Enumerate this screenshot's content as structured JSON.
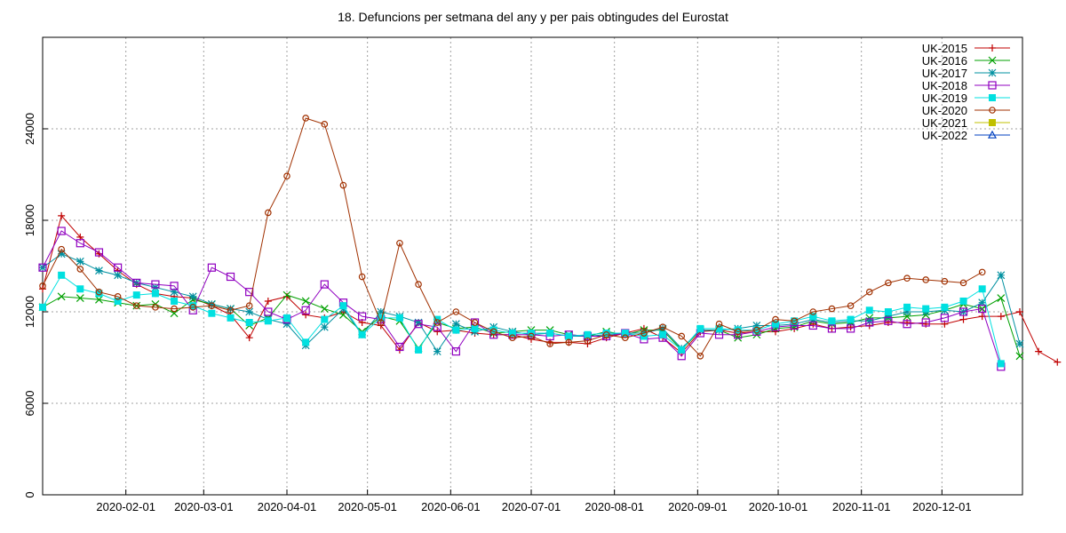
{
  "chart_data": {
    "type": "line",
    "title": "18. Defuncions per setmana del any y per pais obtingudes del Eurostat",
    "xlabel": "",
    "ylabel": "",
    "x_axis": {
      "type": "date",
      "min": "2020-01-01",
      "max": "2020-12-31",
      "ticks": [
        "2020-02-01",
        "2020-03-01",
        "2020-04-01",
        "2020-05-01",
        "2020-06-01",
        "2020-07-01",
        "2020-08-01",
        "2020-09-01",
        "2020-10-01",
        "2020-11-01",
        "2020-12-01"
      ]
    },
    "y_axis": {
      "min": 0,
      "max": 30000,
      "ticks": [
        0,
        6000,
        12000,
        18000,
        24000
      ]
    },
    "grid": true,
    "legend_position": "top-right",
    "x_start": "2020-01-01",
    "x_step_days": 7,
    "series": [
      {
        "name": "UK-2015",
        "color": "#c00000",
        "marker": "plus",
        "values": [
          13500,
          18300,
          16900,
          15800,
          14700,
          13800,
          13200,
          13000,
          12900,
          12400,
          11800,
          10300,
          12700,
          13000,
          11800,
          11600,
          12000,
          11300,
          11100,
          9500,
          11300,
          10700,
          10800,
          10600,
          10500,
          10500,
          10200,
          10000,
          10000,
          9900,
          10300,
          10600,
          10900,
          10300,
          9300,
          10700,
          10800,
          10600,
          10700,
          10700,
          10900,
          11200,
          10900,
          11000,
          11100,
          11300,
          11300,
          11200,
          11200,
          11500,
          11700,
          11700,
          12000,
          9400,
          8700
        ]
      },
      {
        "name": "UK-2016",
        "color": "#00a000",
        "marker": "cross",
        "values": [
          12300,
          13000,
          12900,
          12800,
          12600,
          12400,
          12500,
          11900,
          12800,
          12500,
          12200,
          11100,
          11600,
          13100,
          12700,
          12200,
          11800,
          10700,
          11700,
          11400,
          9600,
          11300,
          10900,
          11000,
          10600,
          10700,
          10800,
          10800,
          10500,
          10400,
          10700,
          10500,
          10800,
          10800,
          9500,
          10800,
          10800,
          10300,
          10500,
          10900,
          11000,
          11400,
          11200,
          11300,
          11600,
          11600,
          11700,
          11800,
          12100,
          12500,
          12200,
          12900,
          9100
        ]
      },
      {
        "name": "UK-2017",
        "color": "#0090a0",
        "marker": "star",
        "values": [
          14900,
          15800,
          15300,
          14700,
          14400,
          13900,
          13600,
          13300,
          13000,
          12500,
          12200,
          12000,
          11500,
          11200,
          9800,
          11000,
          12200,
          10500,
          12000,
          11700,
          11300,
          9400,
          11200,
          10700,
          11000,
          10700,
          10500,
          10600,
          10400,
          10400,
          10500,
          10600,
          10600,
          10900,
          9600,
          10800,
          10800,
          10900,
          11100,
          11100,
          11200,
          11500,
          11300,
          11400,
          11400,
          11700,
          12000,
          12000,
          12100,
          12000,
          12600,
          14400,
          9900
        ]
      },
      {
        "name": "UK-2018",
        "color": "#9000c0",
        "marker": "square-open",
        "values": [
          14900,
          17300,
          16500,
          15900,
          14900,
          13900,
          13800,
          13700,
          12100,
          14900,
          14300,
          13300,
          12000,
          11500,
          12100,
          13800,
          12600,
          11700,
          11500,
          9700,
          11200,
          11000,
          9400,
          11300,
          10500,
          10500,
          10500,
          10400,
          10500,
          10400,
          10400,
          10600,
          10200,
          10300,
          9100,
          10600,
          10500,
          10500,
          10700,
          11000,
          11100,
          11100,
          10900,
          10900,
          11300,
          11400,
          11200,
          11300,
          11600,
          12000,
          12200,
          8400
        ]
      },
      {
        "name": "UK-2019",
        "color": "#00e0e0",
        "marker": "square",
        "values": [
          12300,
          14400,
          13500,
          13200,
          12700,
          13100,
          13200,
          12700,
          12400,
          11900,
          11600,
          11300,
          11400,
          11600,
          10000,
          11500,
          12400,
          10500,
          11600,
          11600,
          9500,
          11500,
          10800,
          10900,
          10800,
          10600,
          10600,
          10600,
          10400,
          10500,
          10600,
          10600,
          10400,
          10500,
          9500,
          10900,
          10900,
          10800,
          10800,
          11200,
          11400,
          11700,
          11400,
          11500,
          12100,
          12000,
          12300,
          12200,
          12300,
          12700,
          13500,
          8600
        ]
      },
      {
        "name": "UK-2020",
        "color": "#a03000",
        "marker": "circle",
        "values": [
          13700,
          16100,
          14800,
          13300,
          13000,
          12400,
          12300,
          12200,
          12300,
          12400,
          12100,
          12400,
          18500,
          20900,
          24700,
          24300,
          20300,
          14300,
          11300,
          16500,
          13800,
          11300,
          12000,
          11300,
          10700,
          10300,
          10400,
          9900,
          10000,
          10100,
          10500,
          10300,
          10600,
          11000,
          10400,
          9100,
          11200,
          10700,
          10800,
          11500,
          11400,
          12000,
          12200,
          12400,
          13300,
          13900,
          14200,
          14100,
          14000,
          13900,
          14600
        ]
      },
      {
        "name": "UK-2021",
        "color": "#c0c000",
        "marker": "square",
        "values": []
      },
      {
        "name": "UK-2022",
        "color": "#0040c0",
        "marker": "triangle",
        "values": []
      }
    ]
  }
}
